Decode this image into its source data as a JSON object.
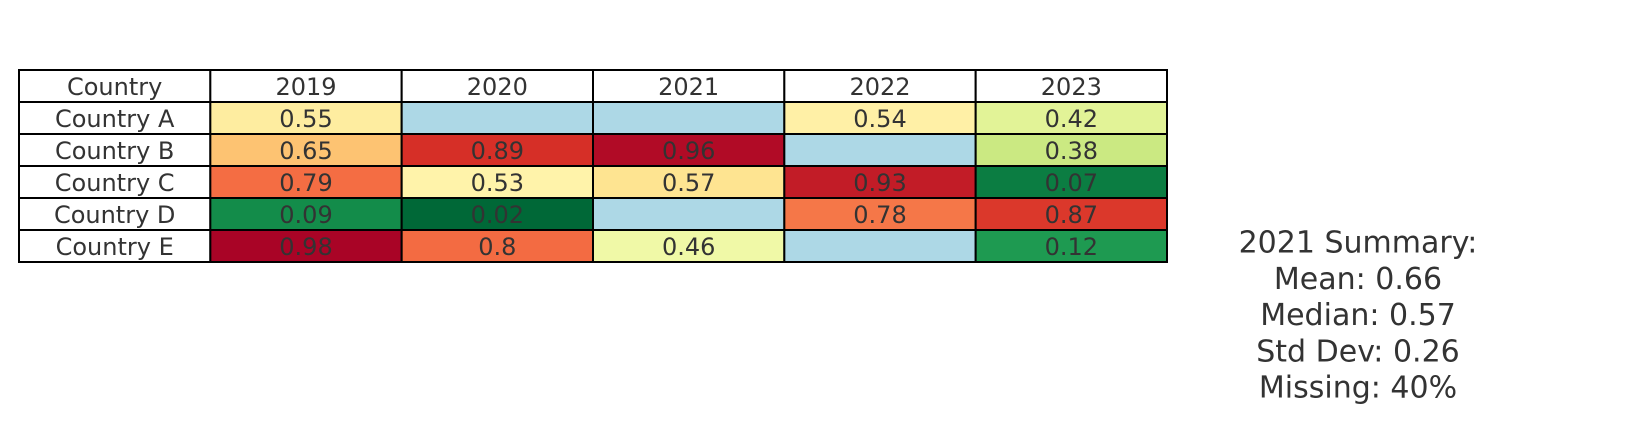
{
  "table": {
    "header": [
      "Country",
      "2019",
      "2020",
      "2021",
      "2022",
      "2023"
    ],
    "rows": [
      [
        "Country A",
        0.55,
        null,
        null,
        0.54,
        0.42
      ],
      [
        "Country B",
        0.65,
        0.89,
        0.96,
        null,
        0.38
      ],
      [
        "Country C",
        0.79,
        0.53,
        0.57,
        0.93,
        0.07
      ],
      [
        "Country D",
        0.09,
        0.02,
        null,
        0.78,
        0.87
      ],
      [
        "Country E",
        0.98,
        0.8,
        0.46,
        null,
        0.12
      ]
    ],
    "cell_colors": [
      [
        "#ffffff",
        "#feeda0",
        "#add8e6",
        "#add8e6",
        "#fff0a6",
        "#e2f397"
      ],
      [
        "#ffffff",
        "#fdc372",
        "#d62f27",
        "#b10b26",
        "#add8e6",
        "#cbe982"
      ],
      [
        "#ffffff",
        "#f46d43",
        "#fff3aa",
        "#fee491",
        "#c21c27",
        "#0b7d42"
      ],
      [
        "#ffffff",
        "#138c4a",
        "#006837",
        "#add8e6",
        "#f57748",
        "#db382b"
      ],
      [
        "#ffffff",
        "#a90426",
        "#f36b42",
        "#f0f9a7",
        "#add8e6",
        "#1e9a51"
      ]
    ]
  },
  "summary": {
    "lines": [
      "2021 Summary:",
      "Mean: 0.66",
      "Median: 0.57",
      "Std Dev: 0.26",
      "Missing: 40%"
    ]
  }
}
